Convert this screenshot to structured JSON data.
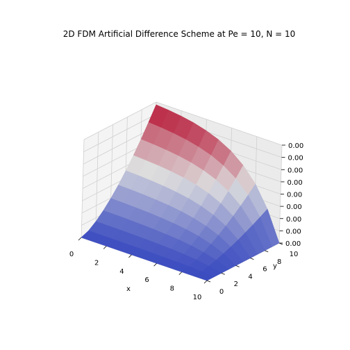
{
  "chart_data": {
    "type": "surface",
    "title": "2D FDM Artificial Difference Scheme at Pe = 10, N = 10",
    "xlabel": "x",
    "ylabel": "y",
    "zlabel": "",
    "x_ticks": [
      "0",
      "2",
      "4",
      "6",
      "8",
      "10"
    ],
    "y_ticks": [
      "0",
      "2",
      "4",
      "6",
      "8",
      "10"
    ],
    "z_ticks": [
      "0.00",
      "0.00",
      "0.00",
      "0.00",
      "0.00",
      "0.00",
      "0.00",
      "0.00",
      "0.00"
    ],
    "xlim": [
      0,
      10
    ],
    "ylim": [
      0,
      10
    ],
    "zlim": [
      0,
      1
    ],
    "grid": [
      0,
      1,
      2,
      3,
      4,
      5,
      6,
      7,
      8,
      9,
      10
    ],
    "colormap": "coolwarm",
    "colors": {
      "low": "#3b4cc0",
      "mid": "#dddddd",
      "high": "#b40426"
    },
    "grid_lines": true
  }
}
